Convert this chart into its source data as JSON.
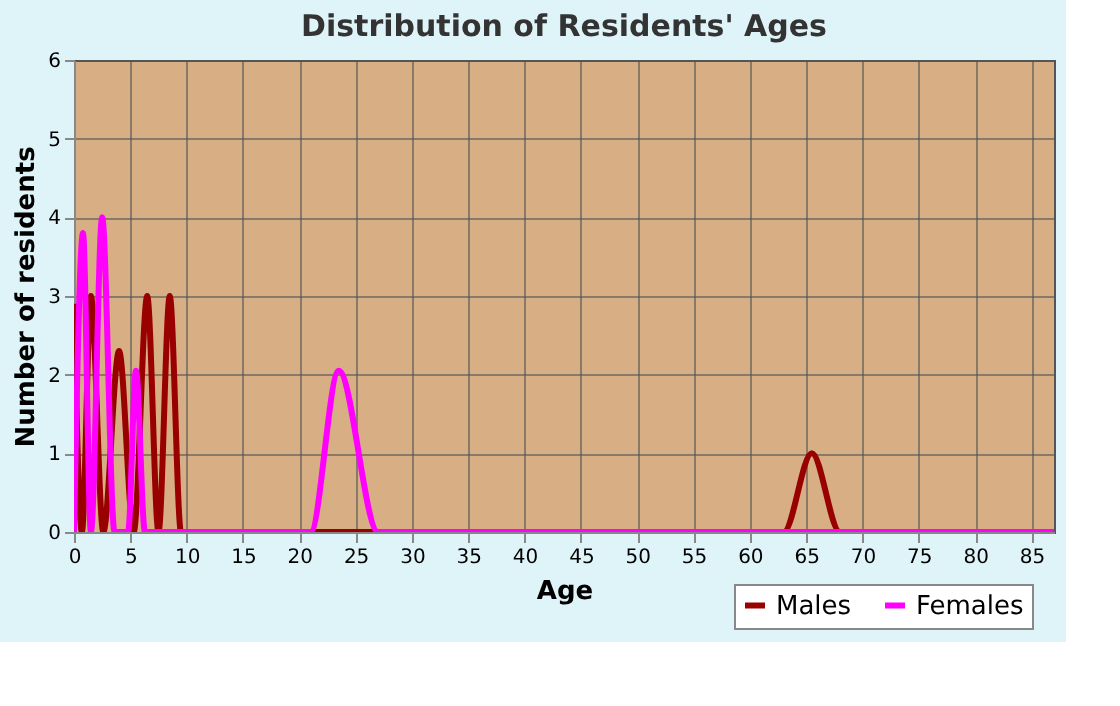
{
  "chart_data": {
    "type": "line",
    "title": "Distribution of Residents' Ages",
    "xlabel": "Age",
    "ylabel": "Number of residents",
    "xlim": [
      0,
      87
    ],
    "xticks": [
      0,
      5,
      10,
      15,
      20,
      25,
      30,
      35,
      40,
      45,
      50,
      55,
      60,
      65,
      70,
      75,
      80,
      85
    ],
    "ylim": [
      0,
      6
    ],
    "yticks": [
      0,
      1,
      2,
      3,
      4,
      5,
      6
    ],
    "grid": true,
    "legend": "bottom right",
    "series": [
      {
        "name": "Males",
        "color": "#990000",
        "x": [
          0,
          0.7,
          1.5,
          2.6,
          4,
          5.3,
          6.5,
          7.5,
          8.5,
          9.5,
          10,
          63,
          65.5,
          68,
          87
        ],
        "values": [
          2.9,
          0,
          3,
          0,
          2.3,
          0,
          3,
          0,
          3,
          0,
          0,
          0,
          1.0,
          0,
          0
        ]
      },
      {
        "name": "Females",
        "color": "#ff00ff",
        "x": [
          0,
          0.8,
          1.5,
          2.5,
          3.6,
          4.8,
          5.5,
          6.3,
          21,
          23.5,
          27,
          87
        ],
        "values": [
          0,
          3.8,
          0,
          4,
          0,
          0,
          2.05,
          0,
          0,
          2.05,
          0,
          0
        ]
      }
    ]
  }
}
